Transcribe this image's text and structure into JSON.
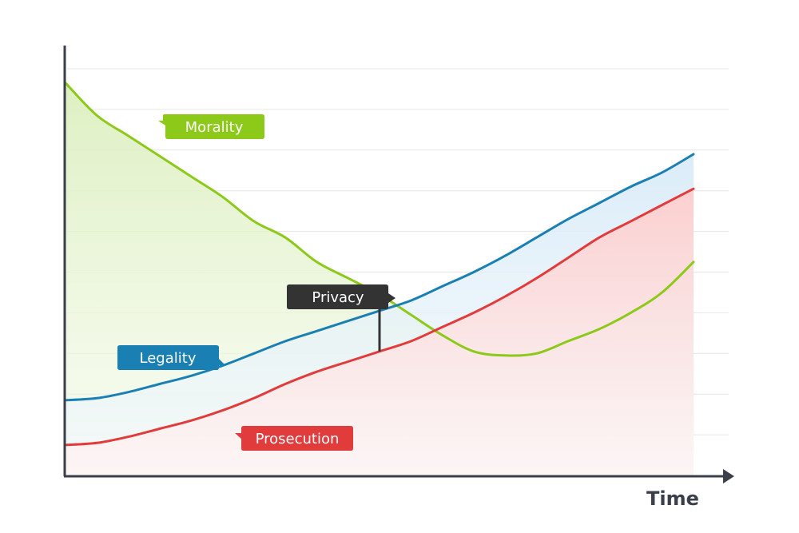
{
  "chart_data": {
    "type": "area",
    "xlabel": "Time",
    "ylabel": "",
    "xlim": [
      0,
      100
    ],
    "ylim": [
      0,
      100
    ],
    "grid": true,
    "gridlines_y": [
      10,
      20,
      30,
      40,
      50,
      60,
      70,
      80,
      90,
      100
    ],
    "x": [
      0,
      5,
      10,
      15,
      20,
      25,
      30,
      35,
      40,
      45,
      50,
      55,
      60,
      65,
      70,
      75,
      80,
      85,
      90,
      95,
      100
    ],
    "series": [
      {
        "name": "Morality",
        "color": "#8cc919",
        "fill": "#e4f2cc",
        "values": [
          96.5,
          88.5,
          83.5,
          78.5,
          73.5,
          68.5,
          62.5,
          58.5,
          52.5,
          48.5,
          44.5,
          39.5,
          34.5,
          30.5,
          29.5,
          30.0,
          33.0,
          36.0,
          40.0,
          45.0,
          52.5
        ]
      },
      {
        "name": "Legality",
        "color": "#1a7fb3",
        "fill": "#e5f1fa",
        "values": [
          18.5,
          19.0,
          20.5,
          22.5,
          24.5,
          27.0,
          30.0,
          33.0,
          35.5,
          38.0,
          40.5,
          43.0,
          46.5,
          50.0,
          54.0,
          58.5,
          63.0,
          67.0,
          71.0,
          74.5,
          79.0
        ]
      },
      {
        "name": "Prosecution",
        "color": "#e13b3b",
        "fill": "#fcdada",
        "values": [
          7.5,
          8.0,
          9.5,
          11.5,
          13.5,
          16.0,
          19.0,
          22.5,
          25.5,
          28.0,
          30.5,
          33.0,
          36.5,
          40.0,
          44.0,
          48.5,
          53.5,
          58.5,
          62.5,
          66.5,
          70.5
        ]
      }
    ],
    "annotations": [
      {
        "name": "Privacy",
        "color": "#333333",
        "x": 50,
        "from_series": "Prosecution",
        "to_series": "Morality"
      }
    ]
  },
  "labels": {
    "morality": "Morality",
    "legality": "Legality",
    "prosecution": "Prosecution",
    "privacy": "Privacy",
    "time": "Time"
  }
}
